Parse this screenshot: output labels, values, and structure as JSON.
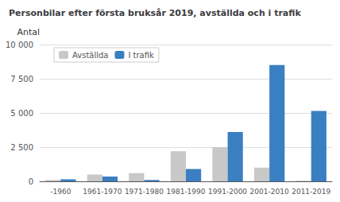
{
  "chart_data": {
    "type": "bar",
    "title": "Personbilar efter första bruksår 2019, avställda och i trafik",
    "ylabel": "Antal",
    "categories": [
      "-1960",
      "1961-1970",
      "1971-1980",
      "1981-1990",
      "1991-2000",
      "2001-2010",
      "2011-2019"
    ],
    "series": [
      {
        "name": "Avställda",
        "color": "#c8c8c8",
        "values": [
          100,
          500,
          600,
          2200,
          2500,
          1000,
          50
        ]
      },
      {
        "name": "I trafik",
        "color": "#3a7fc1",
        "values": [
          150,
          350,
          100,
          900,
          3600,
          8500,
          5150
        ]
      }
    ],
    "ylim": [
      0,
      10000
    ],
    "yticks": [
      0,
      {
        "value": 2500,
        "label": "2 500"
      },
      {
        "value": 5000,
        "label": "5 000"
      },
      {
        "value": 7500,
        "label": "7 500"
      },
      {
        "value": 10000,
        "label": "10 000"
      }
    ],
    "grid": true,
    "legend": "upper left"
  }
}
